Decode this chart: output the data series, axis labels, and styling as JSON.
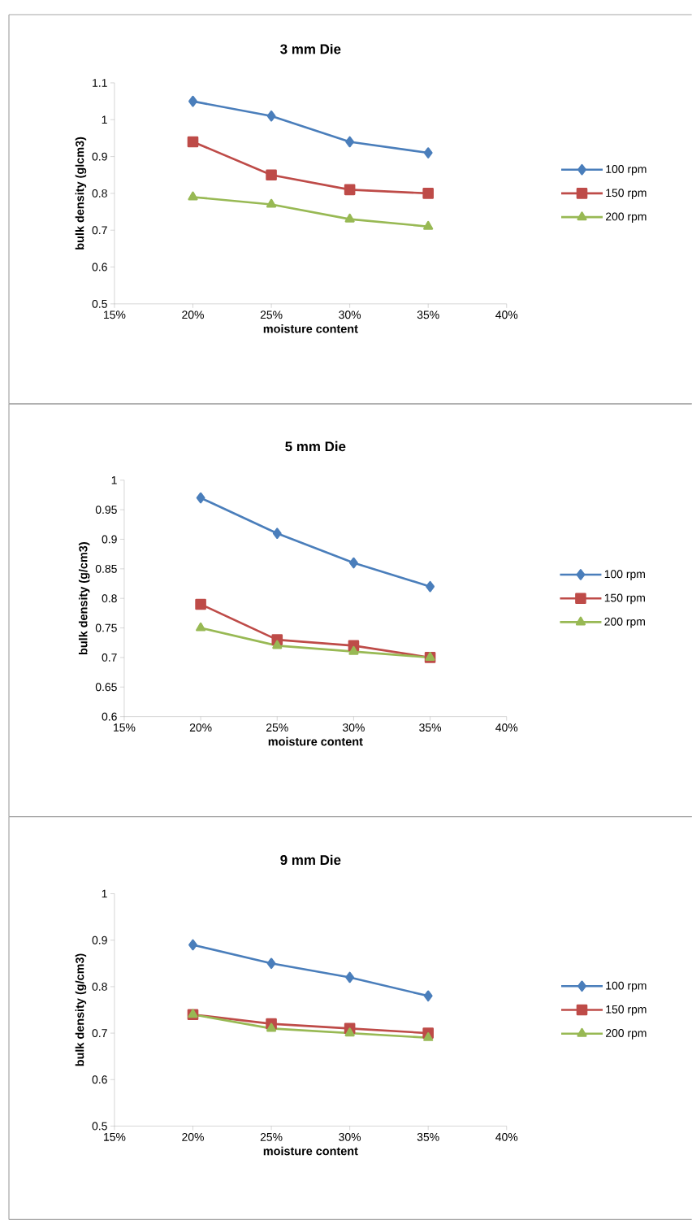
{
  "chart_data": [
    {
      "type": "line",
      "title": "3 mm Die",
      "xlabel": "moisture content",
      "ylabel": "bulk density (glcm3)",
      "x": [
        20,
        25,
        30,
        35
      ],
      "xlim": [
        15,
        40
      ],
      "xticks": [
        {
          "value": 15,
          "label": "15%"
        },
        {
          "value": 20,
          "label": "20%"
        },
        {
          "value": 25,
          "label": "25%"
        },
        {
          "value": 30,
          "label": "30%"
        },
        {
          "value": 35,
          "label": "35%"
        },
        {
          "value": 40,
          "label": "40%"
        }
      ],
      "ylim": [
        0.5,
        1.1
      ],
      "yticks": [
        0.5,
        0.6,
        0.7,
        0.8,
        0.9,
        1,
        1.1
      ],
      "legend": "right",
      "grid": false,
      "series": [
        {
          "name": "100 rpm",
          "color": "#4a7ebb",
          "marker": "diamond",
          "values": [
            1.05,
            1.01,
            0.94,
            0.91
          ]
        },
        {
          "name": "150 rpm",
          "color": "#be4b48",
          "marker": "square",
          "values": [
            0.94,
            0.85,
            0.81,
            0.8
          ]
        },
        {
          "name": "200 rpm",
          "color": "#98b954",
          "marker": "triangle",
          "values": [
            0.79,
            0.77,
            0.73,
            0.71
          ]
        }
      ]
    },
    {
      "type": "line",
      "title": "5 mm Die",
      "xlabel": "moisture content",
      "ylabel": "bulk density (g/cm3)",
      "x": [
        20,
        25,
        30,
        35
      ],
      "xlim": [
        15,
        40
      ],
      "xticks": [
        {
          "value": 15,
          "label": "15%"
        },
        {
          "value": 20,
          "label": "20%"
        },
        {
          "value": 25,
          "label": "25%"
        },
        {
          "value": 30,
          "label": "30%"
        },
        {
          "value": 35,
          "label": "35%"
        },
        {
          "value": 40,
          "label": "40%"
        }
      ],
      "ylim": [
        0.6,
        1
      ],
      "yticks": [
        0.6,
        0.65,
        0.7,
        0.75,
        0.8,
        0.85,
        0.9,
        0.95,
        1
      ],
      "legend": "right",
      "grid": false,
      "series": [
        {
          "name": "100 rpm",
          "color": "#4a7ebb",
          "marker": "diamond",
          "values": [
            0.97,
            0.91,
            0.86,
            0.82
          ]
        },
        {
          "name": "150 rpm",
          "color": "#be4b48",
          "marker": "square",
          "values": [
            0.79,
            0.73,
            0.72,
            0.7
          ]
        },
        {
          "name": "200 rpm",
          "color": "#98b954",
          "marker": "triangle",
          "values": [
            0.75,
            0.72,
            0.71,
            0.7
          ]
        }
      ]
    },
    {
      "type": "line",
      "title": "9 mm Die",
      "xlabel": "moisture content",
      "ylabel": "bulk density (g/cm3)",
      "x": [
        20,
        25,
        30,
        35
      ],
      "xlim": [
        15,
        40
      ],
      "xticks": [
        {
          "value": 15,
          "label": "15%"
        },
        {
          "value": 20,
          "label": "20%"
        },
        {
          "value": 25,
          "label": "25%"
        },
        {
          "value": 30,
          "label": "30%"
        },
        {
          "value": 35,
          "label": "35%"
        },
        {
          "value": 40,
          "label": "40%"
        }
      ],
      "ylim": [
        0.5,
        1
      ],
      "yticks": [
        0.5,
        0.6,
        0.7,
        0.8,
        0.9,
        1
      ],
      "legend": "right",
      "grid": false,
      "series": [
        {
          "name": "100 rpm",
          "color": "#4a7ebb",
          "marker": "diamond",
          "values": [
            0.89,
            0.85,
            0.82,
            0.78
          ]
        },
        {
          "name": "150 rpm",
          "color": "#be4b48",
          "marker": "square",
          "values": [
            0.74,
            0.72,
            0.71,
            0.7
          ]
        },
        {
          "name": "200 rpm",
          "color": "#98b954",
          "marker": "triangle",
          "values": [
            0.74,
            0.71,
            0.7,
            0.69
          ]
        }
      ]
    }
  ]
}
